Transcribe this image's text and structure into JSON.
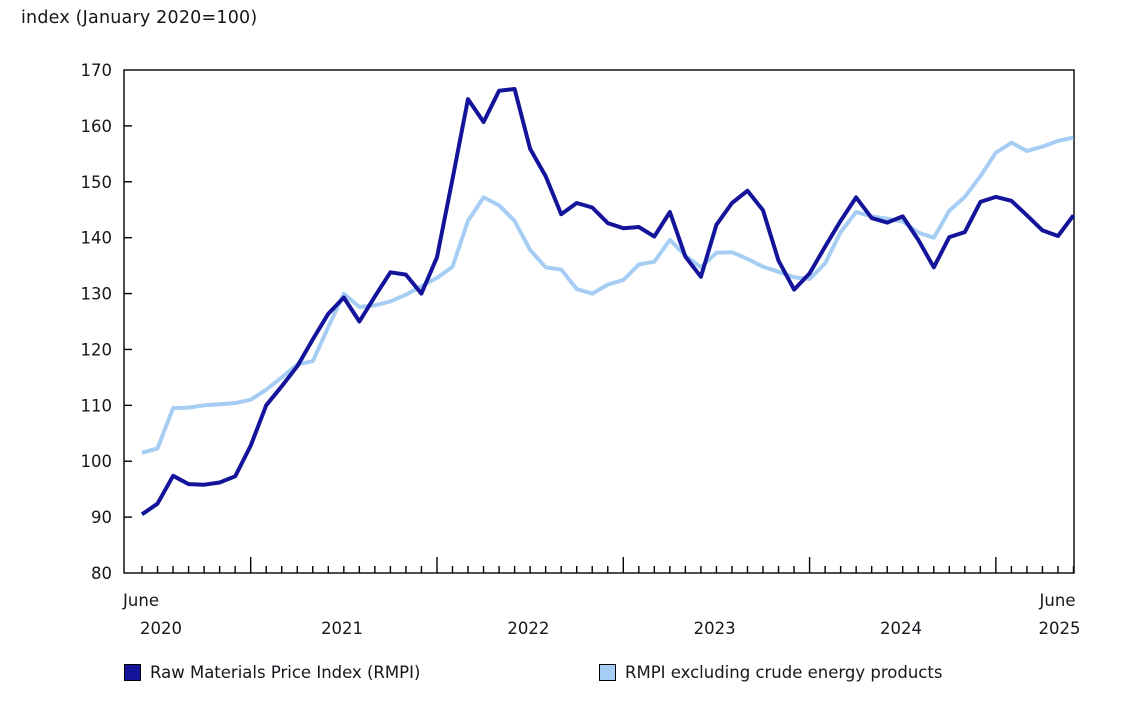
{
  "title": "index (January 2020=100)",
  "legend": {
    "rmpi_label": "Raw Materials Price Index (RMPI)",
    "ex_energy_label": "RMPI excluding crude energy products"
  },
  "colors": {
    "rmpi": "#14149b",
    "ex_energy": "#a6cdf3",
    "axis": "#000000",
    "text": "#16161d"
  },
  "chart_data": {
    "type": "line",
    "title": "index (January 2020=100)",
    "xlabel": "",
    "ylabel": "index (January 2020=100)",
    "ylim": [
      80,
      170
    ],
    "ytick_step": 10,
    "grid": false,
    "legend_position": "bottom",
    "x_axis": {
      "start_label_top": "June",
      "start_label_bottom": "2020",
      "end_label_top": "June",
      "end_label_bottom": "2025",
      "mid_year_labels": [
        "2021",
        "2022",
        "2023",
        "2024"
      ],
      "tick_interval": "monthly",
      "long_tick_months": [
        "2021-01",
        "2022-01",
        "2023-01",
        "2024-01",
        "2025-01"
      ]
    },
    "x": [
      "2020-06",
      "2020-07",
      "2020-08",
      "2020-09",
      "2020-10",
      "2020-11",
      "2020-12",
      "2021-01",
      "2021-02",
      "2021-03",
      "2021-04",
      "2021-05",
      "2021-06",
      "2021-07",
      "2021-08",
      "2021-09",
      "2021-10",
      "2021-11",
      "2021-12",
      "2022-01",
      "2022-02",
      "2022-03",
      "2022-04",
      "2022-05",
      "2022-06",
      "2022-07",
      "2022-08",
      "2022-09",
      "2022-10",
      "2022-11",
      "2022-12",
      "2023-01",
      "2023-02",
      "2023-03",
      "2023-04",
      "2023-05",
      "2023-06",
      "2023-07",
      "2023-08",
      "2023-09",
      "2023-10",
      "2023-11",
      "2023-12",
      "2024-01",
      "2024-02",
      "2024-03",
      "2024-04",
      "2024-05",
      "2024-06",
      "2024-07",
      "2024-08",
      "2024-09",
      "2024-10",
      "2024-11",
      "2024-12",
      "2025-01",
      "2025-02",
      "2025-03",
      "2025-04",
      "2025-05",
      "2025-06"
    ],
    "series": [
      {
        "name": "RMPI excluding crude energy products",
        "color": "#a6cdf3",
        "values": [
          101.5,
          102.3,
          109.5,
          109.6,
          110.0,
          110.2,
          110.4,
          111.0,
          112.8,
          115.0,
          117.3,
          117.9,
          124.0,
          130.0,
          127.6,
          127.9,
          128.6,
          129.8,
          131.3,
          132.8,
          134.8,
          143.0,
          147.2,
          145.8,
          143.0,
          137.8,
          134.7,
          134.3,
          130.8,
          130.0,
          131.6,
          132.4,
          135.2,
          135.7,
          139.6,
          136.8,
          134.7,
          137.3,
          137.4,
          136.2,
          134.8,
          133.9,
          132.9,
          132.6,
          135.4,
          141.0,
          144.6,
          143.8,
          143.4,
          142.9,
          140.9,
          140.0,
          144.8,
          147.3,
          151.0,
          155.2,
          157.0,
          155.5,
          156.3,
          157.3,
          157.9
        ]
      },
      {
        "name": "Raw Materials Price Index (RMPI)",
        "color": "#14149b",
        "values": [
          90.5,
          92.4,
          97.4,
          95.9,
          95.8,
          96.2,
          97.3,
          102.8,
          110.0,
          113.4,
          117.0,
          121.8,
          126.4,
          129.3,
          125.0,
          129.5,
          133.8,
          133.4,
          130.0,
          136.5,
          150.5,
          164.8,
          160.7,
          166.3,
          166.6,
          155.9,
          151.0,
          144.2,
          146.2,
          145.4,
          142.6,
          141.7,
          141.9,
          140.2,
          144.6,
          136.6,
          133.0,
          142.3,
          146.2,
          148.4,
          144.9,
          135.9,
          130.7,
          133.6,
          138.4,
          143.0,
          147.2,
          143.5,
          142.7,
          143.8,
          139.6,
          134.7,
          140.1,
          141.0,
          146.4,
          147.3,
          146.6,
          144.0,
          141.3,
          140.3,
          144.0
        ]
      }
    ]
  }
}
